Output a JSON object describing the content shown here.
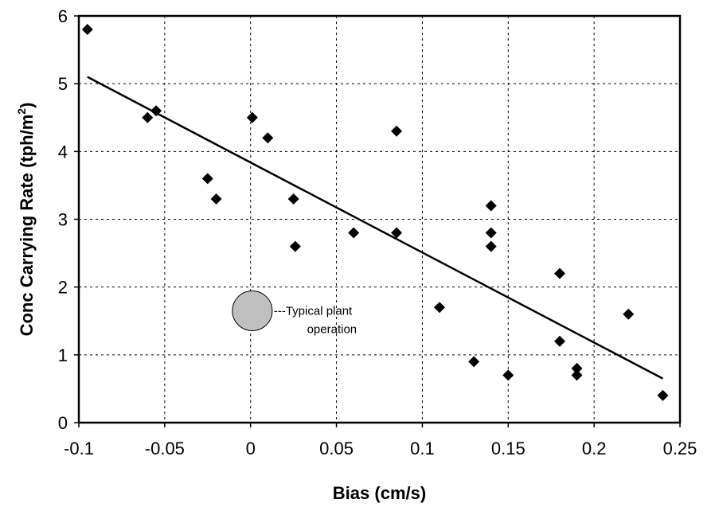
{
  "chart_data": {
    "type": "scatter",
    "title": "",
    "xlabel": "Bias (cm/s)",
    "ylabel_main": "Conc Carrying Rate (tph/m",
    "ylabel_sup": "2",
    "ylabel_tail": ")",
    "xlim": [
      -0.1,
      0.25
    ],
    "ylim": [
      0,
      6
    ],
    "xticks": [
      -0.1,
      -0.05,
      0,
      0.05,
      0.1,
      0.15,
      0.2,
      0.25
    ],
    "xtick_labels": [
      "-0.1",
      "-0.05",
      "0",
      "0.05",
      "0.1",
      "0.15",
      "0.2",
      "0.25"
    ],
    "yticks": [
      0,
      1,
      2,
      3,
      4,
      5,
      6
    ],
    "ytick_labels": [
      "0",
      "1",
      "2",
      "3",
      "4",
      "5",
      "6"
    ],
    "grid": true,
    "legend": "none",
    "series": [
      {
        "marker": "diamond",
        "color": "#000000",
        "points": [
          [
            -0.095,
            5.8
          ],
          [
            -0.06,
            4.5
          ],
          [
            -0.055,
            4.6
          ],
          [
            -0.025,
            3.6
          ],
          [
            -0.02,
            3.3
          ],
          [
            0.001,
            4.5
          ],
          [
            0.01,
            4.2
          ],
          [
            0.025,
            3.3
          ],
          [
            0.026,
            2.6
          ],
          [
            0.06,
            2.8
          ],
          [
            0.085,
            4.3
          ],
          [
            0.085,
            2.8
          ],
          [
            0.11,
            1.7
          ],
          [
            0.13,
            0.9
          ],
          [
            0.14,
            3.2
          ],
          [
            0.14,
            2.8
          ],
          [
            0.14,
            2.6
          ],
          [
            0.15,
            0.7
          ],
          [
            0.18,
            2.2
          ],
          [
            0.18,
            1.2
          ],
          [
            0.19,
            0.8
          ],
          [
            0.19,
            0.7
          ],
          [
            0.22,
            1.6
          ],
          [
            0.24,
            0.4
          ]
        ]
      }
    ],
    "trendline": {
      "x": [
        -0.095,
        0.24
      ],
      "y": [
        5.1,
        0.65
      ],
      "color": "#000000"
    },
    "annotation": {
      "x": 0.001,
      "y": 1.65,
      "marker_color": "#c0c0c0",
      "line1": "---Typical plant",
      "line2": "operation"
    }
  }
}
